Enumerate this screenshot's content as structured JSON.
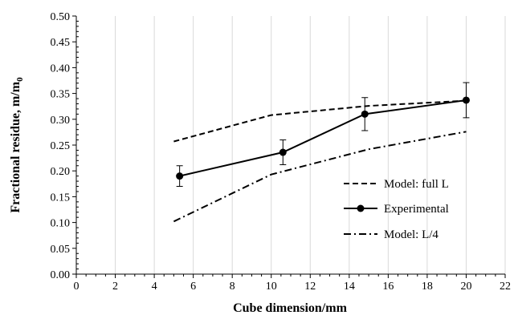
{
  "chart_data": {
    "type": "line",
    "title": "",
    "xlabel": "Cube dimension/mm",
    "ylabel": "Fractional residue, m/m",
    "ylabel_subscript": "0",
    "xlim": [
      0,
      22
    ],
    "ylim": [
      0,
      0.5
    ],
    "x_ticks": [
      "0",
      "2",
      "4",
      "6",
      "8",
      "10",
      "12",
      "14",
      "16",
      "18",
      "20",
      "22"
    ],
    "y_ticks": [
      "0.00",
      "0.05",
      "0.10",
      "0.15",
      "0.20",
      "0.25",
      "0.30",
      "0.35",
      "0.40",
      "0.45",
      "0.50"
    ],
    "grid": "vertical",
    "legend_position": "lower-right",
    "series": [
      {
        "name": "Model: full L",
        "style": "dashed",
        "color": "#000000",
        "x": [
          5,
          10,
          15,
          20
        ],
        "y": [
          0.257,
          0.308,
          0.326,
          0.336
        ]
      },
      {
        "name": "Experimental",
        "style": "solid-markers",
        "color": "#000000",
        "x": [
          5.3,
          10.6,
          14.8,
          20
        ],
        "y": [
          0.19,
          0.236,
          0.31,
          0.337
        ],
        "error": [
          0.02,
          0.024,
          0.032,
          0.034
        ]
      },
      {
        "name": "Model: L/4",
        "style": "dash-dot",
        "color": "#000000",
        "x": [
          5,
          10,
          15,
          20
        ],
        "y": [
          0.102,
          0.193,
          0.242,
          0.276
        ]
      }
    ]
  }
}
